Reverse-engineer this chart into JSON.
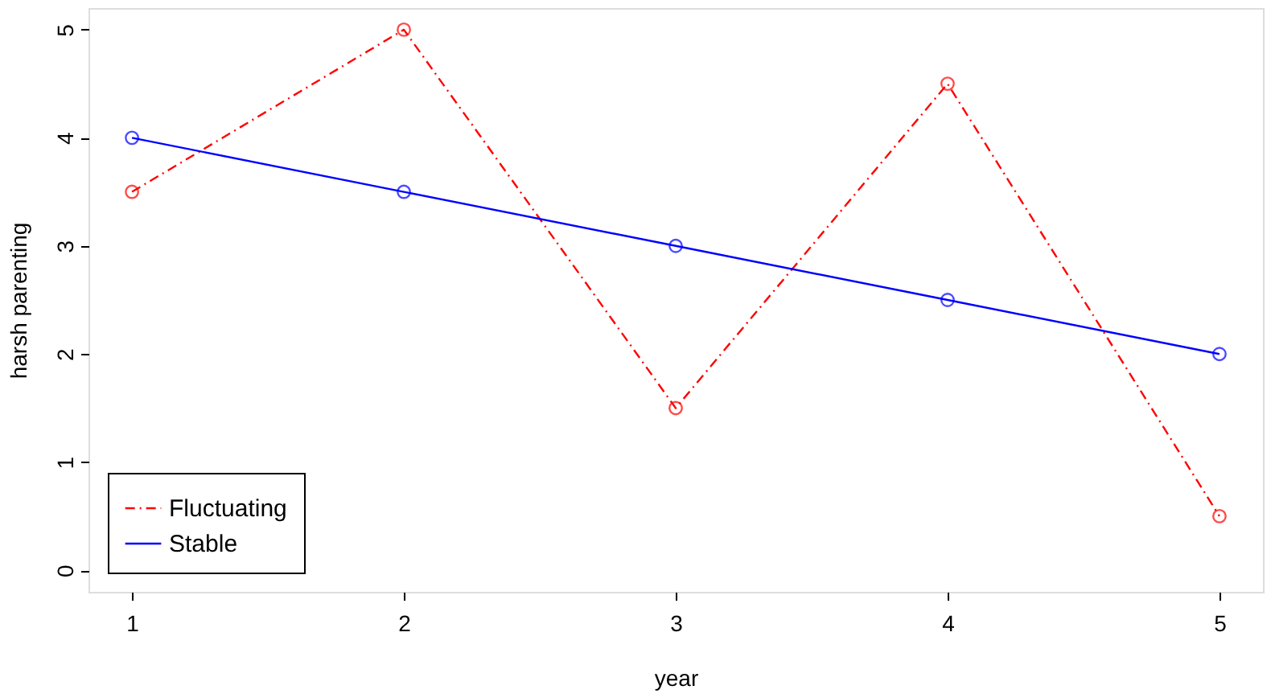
{
  "chart_data": {
    "type": "line",
    "xlabel": "year",
    "ylabel": "harsh parenting",
    "x": [
      1,
      2,
      3,
      4,
      5
    ],
    "series": [
      {
        "name": "Fluctuating",
        "color": "#ff0000",
        "values": [
          3.5,
          5,
          1.5,
          4.5,
          0.5
        ],
        "line_style": "dashed"
      },
      {
        "name": "Stable",
        "color": "#0000ff",
        "values": [
          4,
          3.5,
          3,
          2.5,
          2
        ],
        "line_style": "solid"
      }
    ],
    "xlim": [
      0.84,
      5.16
    ],
    "ylim": [
      -0.2,
      5.2
    ],
    "xticks": [
      1,
      2,
      3,
      4,
      5
    ],
    "yticks": [
      0,
      1,
      2,
      3,
      4,
      5
    ],
    "grid": false,
    "legend": "bottom left",
    "marker": "circle"
  }
}
